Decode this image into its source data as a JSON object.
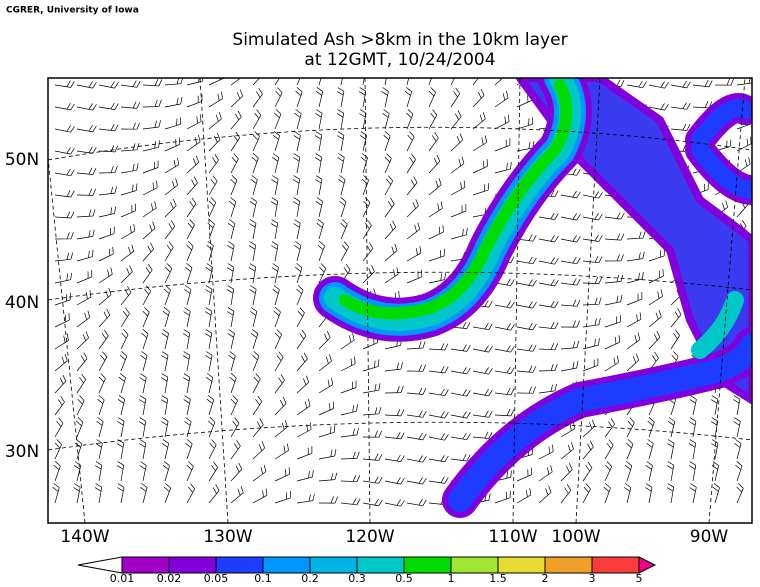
{
  "credit": "CGRER, University of Iowa",
  "title": [
    "Simulated Ash  >8km in the 10km layer",
    "at 12GMT, 10/24/2004"
  ],
  "lat_labels": [
    "50N",
    "40N",
    "30N"
  ],
  "lon_labels": [
    "140W",
    "130W",
    "120W",
    "110W",
    "100W",
    "90W"
  ],
  "colorbar": {
    "labels": [
      "0.01",
      "0.02",
      "0.05",
      "0.1",
      "0.2",
      "0.3",
      "0.5",
      "1",
      "1.5",
      "2",
      "3",
      "5"
    ],
    "under_color": "#ffffff",
    "colors": [
      "#a000c8",
      "#8200dc",
      "#1e3cff",
      "#0096ff",
      "#00b4e6",
      "#00c8c8",
      "#00dc00",
      "#a0e632",
      "#e6dc32",
      "#f0a028",
      "#fa3c3c"
    ],
    "over_color": "#f00082"
  }
}
